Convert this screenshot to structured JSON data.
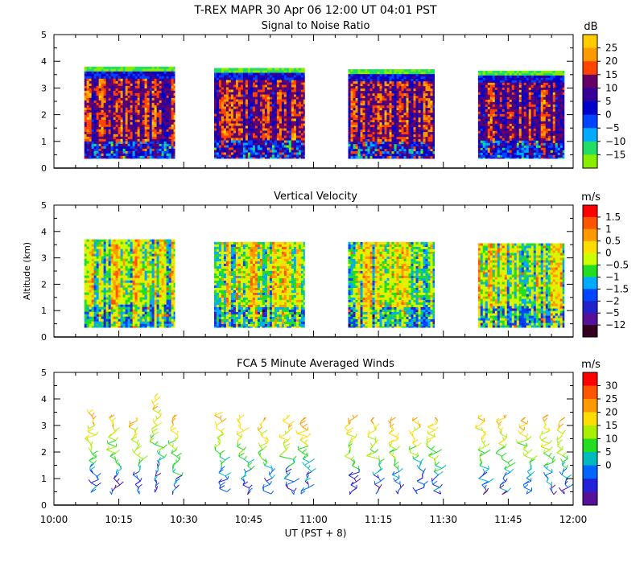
{
  "header": {
    "main_title": "T-REX  MAPR 30 Apr 06  12:00 UT  04:01  PST"
  },
  "x_axis": {
    "label": "UT  (PST + 8)",
    "tick_labels": [
      "10:00",
      "10:15",
      "10:30",
      "10:45",
      "11:00",
      "11:15",
      "11:30",
      "11:45",
      "12:00"
    ],
    "range_minutes_ut": [
      600,
      720
    ]
  },
  "chart_data": [
    {
      "type": "heatmap",
      "title": "Signal to Noise Ratio",
      "ylabel": "",
      "ylim": [
        0,
        5
      ],
      "y_ticks": [
        "0",
        "1",
        "2",
        "3",
        "4",
        "5"
      ],
      "colorbar": {
        "unit": "dB",
        "levels": [
          "25",
          "20",
          "15",
          "10",
          "5",
          "0",
          "−5",
          "−10",
          "−15"
        ],
        "colors": [
          "#ffcc00",
          "#ff9900",
          "#ff4400",
          "#660066",
          "#330099",
          "#0000cc",
          "#0044ff",
          "#00aaff",
          "#22dd66",
          "#88ee00"
        ]
      },
      "data_blocks_minutes_ut": [
        [
          607,
          628
        ],
        [
          637,
          658
        ],
        [
          668,
          688
        ],
        [
          698,
          718
        ]
      ],
      "data_top_km": [
        3.8,
        3.75,
        3.7,
        3.65
      ],
      "data_bottom_km": 0.35
    },
    {
      "type": "heatmap",
      "title": "Vertical Velocity",
      "ylabel": "Altitude (km)",
      "ylim": [
        0,
        5
      ],
      "y_ticks": [
        "0",
        "1",
        "2",
        "3",
        "4",
        "5"
      ],
      "colorbar": {
        "unit": "m/s",
        "levels": [
          "1.5",
          "1",
          "0.5",
          "0",
          "−0.5",
          "−1",
          "−1.5",
          "−2",
          "−5",
          "−12"
        ],
        "colors": [
          "#ff0000",
          "#ff5500",
          "#ff9900",
          "#ffdd00",
          "#ccff00",
          "#22dd22",
          "#00aaff",
          "#0044ff",
          "#2222cc",
          "#551199",
          "#330022"
        ]
      },
      "data_blocks_minutes_ut": [
        [
          607,
          628
        ],
        [
          637,
          658
        ],
        [
          668,
          688
        ],
        [
          698,
          718
        ]
      ],
      "data_top_km": [
        3.7,
        3.6,
        3.6,
        3.55
      ],
      "data_bottom_km": 0.35
    },
    {
      "type": "scatter",
      "title": "FCA 5 Minute Averaged Winds",
      "ylabel": "",
      "ylim": [
        0,
        5
      ],
      "y_ticks": [
        "0",
        "1",
        "2",
        "3",
        "4",
        "5"
      ],
      "colorbar": {
        "unit": "m/s",
        "levels": [
          "30",
          "25",
          "20",
          "15",
          "10",
          "5",
          "0"
        ],
        "colors": [
          "#ff0000",
          "#ff5500",
          "#ff9900",
          "#ffdd00",
          "#aaee00",
          "#22dd22",
          "#00bbbb",
          "#0066ff",
          "#2222dd",
          "#551199"
        ]
      },
      "profile_times_minutes_ut": [
        609,
        614,
        619,
        624,
        628,
        639,
        644,
        649,
        654,
        658,
        669,
        674,
        679,
        684,
        688,
        699,
        704,
        709,
        714,
        718
      ],
      "profile_top_km": [
        3.6,
        3.4,
        3.3,
        4.2,
        3.4,
        3.5,
        3.4,
        3.3,
        3.4,
        3.3,
        3.4,
        3.3,
        3.3,
        3.3,
        3.3,
        3.4,
        3.4,
        3.3,
        3.4,
        3.3
      ],
      "profile_bottom_km": 0.5
    }
  ]
}
